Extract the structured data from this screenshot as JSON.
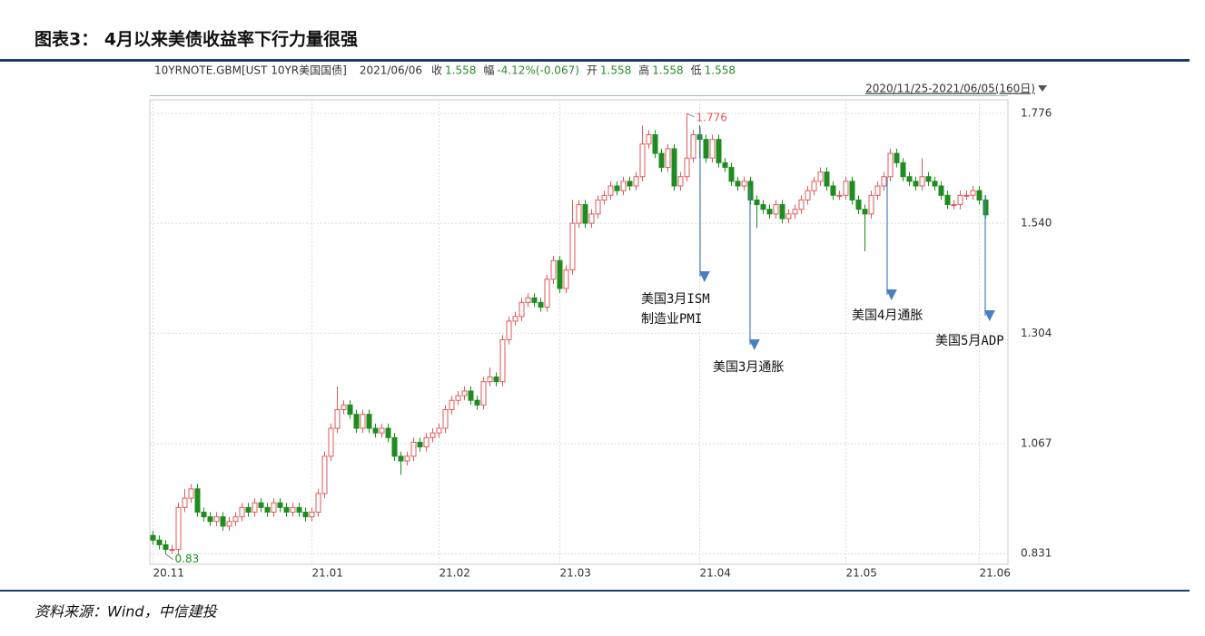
{
  "title": "图表3：  4月以来美债收益率下行力量很强",
  "source": "资料来源：Wind，中信建投",
  "chart_data": {
    "type": "candlestick",
    "security": "10YRNOTE.GBM[UST 10YR美国国债]",
    "date": "2021/06/06",
    "quote": [
      {
        "label": "收",
        "value": "1.558"
      },
      {
        "label": "幅",
        "value": "-4.12%(-0.067)"
      },
      {
        "label": "开",
        "value": "1.558"
      },
      {
        "label": "高",
        "value": "1.558"
      },
      {
        "label": "低",
        "value": "1.558"
      }
    ],
    "range_label": "2020/11/25-2021/06/05(160日)",
    "up_color": "#e05a5a",
    "down_color": "#1e8c1e",
    "ylim": [
      0.808,
      1.805
    ],
    "yticks": [
      0.831,
      1.067,
      1.304,
      {
        "value": 1.54,
        "label": "1.540"
      },
      1.776
    ],
    "xlim": [
      -0.5,
      134.5
    ],
    "xticks": [
      {
        "value": 0,
        "label": "20.11"
      },
      {
        "value": 25,
        "label": "21.01"
      },
      {
        "value": 45,
        "label": "21.02"
      },
      {
        "value": 64,
        "label": "21.03"
      },
      {
        "value": 86,
        "label": "21.04"
      },
      {
        "value": 109,
        "label": "21.05"
      },
      {
        "value": 130,
        "label": "21.06"
      }
    ],
    "grid": true,
    "open": [
      0.87,
      0.86,
      0.85,
      0.84,
      0.84,
      0.93,
      0.95,
      0.97,
      0.92,
      0.91,
      0.9,
      0.91,
      0.89,
      0.9,
      0.91,
      0.93,
      0.92,
      0.94,
      0.93,
      0.92,
      0.94,
      0.93,
      0.92,
      0.93,
      0.92,
      0.91,
      0.92,
      0.96,
      1.04,
      1.1,
      1.14,
      1.15,
      1.13,
      1.1,
      1.13,
      1.1,
      1.09,
      1.1,
      1.08,
      1.04,
      1.03,
      1.04,
      1.07,
      1.06,
      1.08,
      1.09,
      1.1,
      1.14,
      1.16,
      1.17,
      1.18,
      1.16,
      1.15,
      1.2,
      1.21,
      1.2,
      1.29,
      1.33,
      1.34,
      1.37,
      1.38,
      1.37,
      1.36,
      1.42,
      1.46,
      1.4,
      1.44,
      1.54,
      1.58,
      1.54,
      1.56,
      1.59,
      1.6,
      1.62,
      1.61,
      1.63,
      1.62,
      1.64,
      1.71,
      1.73,
      1.69,
      1.66,
      1.7,
      1.62,
      1.64,
      1.68,
      1.73,
      1.72,
      1.68,
      1.72,
      1.67,
      1.66,
      1.63,
      1.62,
      1.63,
      1.59,
      1.58,
      1.57,
      1.56,
      1.58,
      1.55,
      1.56,
      1.57,
      1.59,
      1.61,
      1.63,
      1.65,
      1.62,
      1.6,
      1.6,
      1.63,
      1.59,
      1.57,
      1.56,
      1.6,
      1.62,
      1.64,
      1.69,
      1.67,
      1.64,
      1.63,
      1.62,
      1.64,
      1.63,
      1.62,
      1.6,
      1.58,
      1.58,
      1.6,
      1.6,
      1.61,
      1.59
    ],
    "high": [
      0.88,
      0.87,
      0.86,
      0.85,
      0.94,
      0.97,
      0.98,
      0.98,
      0.93,
      0.92,
      0.92,
      0.92,
      0.91,
      0.92,
      0.94,
      0.94,
      0.95,
      0.95,
      0.94,
      0.95,
      0.95,
      0.94,
      0.94,
      0.94,
      0.93,
      0.93,
      0.97,
      1.05,
      1.11,
      1.19,
      1.16,
      1.16,
      1.14,
      1.14,
      1.14,
      1.11,
      1.11,
      1.11,
      1.09,
      1.05,
      1.05,
      1.08,
      1.08,
      1.09,
      1.1,
      1.11,
      1.15,
      1.17,
      1.18,
      1.19,
      1.19,
      1.17,
      1.21,
      1.23,
      1.22,
      1.3,
      1.34,
      1.35,
      1.38,
      1.39,
      1.39,
      1.38,
      1.43,
      1.47,
      1.47,
      1.45,
      1.59,
      1.59,
      1.59,
      1.57,
      1.6,
      1.61,
      1.63,
      1.63,
      1.64,
      1.64,
      1.65,
      1.75,
      1.74,
      1.74,
      1.7,
      1.71,
      1.71,
      1.65,
      1.776,
      1.74,
      1.75,
      1.73,
      1.73,
      1.73,
      1.68,
      1.67,
      1.64,
      1.64,
      1.64,
      1.6,
      1.59,
      1.58,
      1.59,
      1.59,
      1.57,
      1.58,
      1.6,
      1.62,
      1.64,
      1.66,
      1.66,
      1.63,
      1.61,
      1.64,
      1.64,
      1.6,
      1.58,
      1.61,
      1.63,
      1.65,
      1.7,
      1.7,
      1.68,
      1.65,
      1.64,
      1.68,
      1.65,
      1.64,
      1.63,
      1.61,
      1.59,
      1.61,
      1.61,
      1.62,
      1.62,
      1.6
    ],
    "low": [
      0.85,
      0.84,
      0.83,
      0.831,
      0.83,
      0.92,
      0.94,
      0.91,
      0.9,
      0.89,
      0.89,
      0.88,
      0.88,
      0.89,
      0.9,
      0.91,
      0.91,
      0.92,
      0.91,
      0.91,
      0.92,
      0.91,
      0.91,
      0.91,
      0.9,
      0.9,
      0.91,
      0.95,
      1.03,
      1.09,
      1.13,
      1.12,
      1.09,
      1.09,
      1.09,
      1.08,
      1.08,
      1.07,
      1.03,
      1.0,
      1.02,
      1.03,
      1.05,
      1.05,
      1.07,
      1.08,
      1.09,
      1.13,
      1.15,
      1.16,
      1.15,
      1.14,
      1.14,
      1.19,
      1.19,
      1.19,
      1.28,
      1.32,
      1.33,
      1.36,
      1.36,
      1.35,
      1.35,
      1.41,
      1.39,
      1.39,
      1.43,
      1.53,
      1.53,
      1.53,
      1.55,
      1.58,
      1.59,
      1.6,
      1.6,
      1.61,
      1.61,
      1.63,
      1.7,
      1.68,
      1.65,
      1.65,
      1.61,
      1.61,
      1.63,
      1.67,
      1.68,
      1.67,
      1.67,
      1.66,
      1.65,
      1.62,
      1.61,
      1.61,
      1.58,
      1.53,
      1.56,
      1.55,
      1.55,
      1.54,
      1.54,
      1.55,
      1.56,
      1.58,
      1.6,
      1.62,
      1.61,
      1.59,
      1.59,
      1.59,
      1.58,
      1.56,
      1.48,
      1.55,
      1.59,
      1.61,
      1.63,
      1.66,
      1.63,
      1.62,
      1.61,
      1.61,
      1.62,
      1.61,
      1.59,
      1.57,
      1.57,
      1.57,
      1.59,
      1.59,
      1.58,
      1.55
    ],
    "close": [
      0.86,
      0.85,
      0.84,
      0.84,
      0.93,
      0.95,
      0.97,
      0.92,
      0.91,
      0.9,
      0.91,
      0.89,
      0.9,
      0.91,
      0.93,
      0.92,
      0.94,
      0.93,
      0.92,
      0.94,
      0.93,
      0.92,
      0.93,
      0.92,
      0.91,
      0.92,
      0.96,
      1.04,
      1.1,
      1.14,
      1.15,
      1.13,
      1.1,
      1.13,
      1.1,
      1.09,
      1.1,
      1.08,
      1.04,
      1.03,
      1.04,
      1.07,
      1.06,
      1.08,
      1.09,
      1.1,
      1.14,
      1.16,
      1.17,
      1.18,
      1.16,
      1.15,
      1.2,
      1.21,
      1.2,
      1.29,
      1.33,
      1.34,
      1.37,
      1.38,
      1.37,
      1.36,
      1.42,
      1.46,
      1.4,
      1.44,
      1.54,
      1.58,
      1.54,
      1.56,
      1.59,
      1.6,
      1.62,
      1.61,
      1.63,
      1.62,
      1.64,
      1.71,
      1.73,
      1.69,
      1.66,
      1.7,
      1.62,
      1.64,
      1.68,
      1.73,
      1.72,
      1.68,
      1.72,
      1.67,
      1.66,
      1.63,
      1.62,
      1.63,
      1.59,
      1.58,
      1.57,
      1.56,
      1.58,
      1.55,
      1.56,
      1.57,
      1.59,
      1.61,
      1.63,
      1.65,
      1.62,
      1.6,
      1.6,
      1.63,
      1.59,
      1.57,
      1.56,
      1.6,
      1.62,
      1.64,
      1.69,
      1.67,
      1.64,
      1.63,
      1.62,
      1.64,
      1.63,
      1.62,
      1.6,
      1.58,
      1.58,
      1.6,
      1.6,
      1.61,
      1.59,
      1.558
    ],
    "annotations": [
      {
        "lines": [
          "美国3月ISM",
          "制造业PMI"
        ]
      },
      {
        "lines": [
          "美国3月通胀"
        ]
      },
      {
        "lines": [
          "美国4月通胀"
        ]
      },
      {
        "lines": [
          "美国5月ADP"
        ]
      }
    ]
  }
}
